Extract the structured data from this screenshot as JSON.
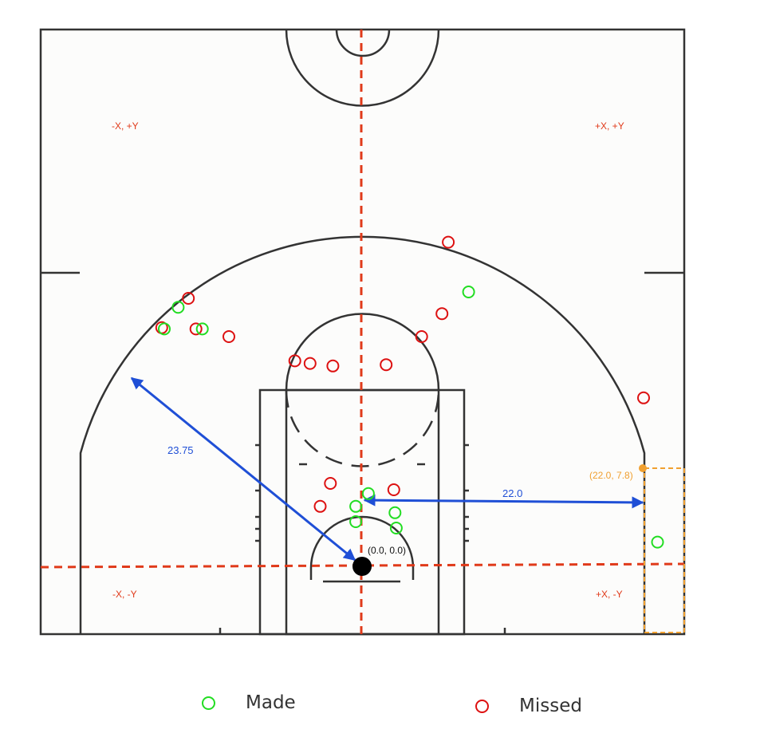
{
  "quadrants": {
    "top_left": "-X, +Y",
    "top_right": "+X, +Y",
    "bottom_left": "-X, -Y",
    "bottom_right": "+X, -Y"
  },
  "annotations": {
    "origin": "(0.0, 0.0)",
    "corner": "(22.0, 7.8)",
    "arc_radius": "23.75",
    "corner_distance": "22.0"
  },
  "legend": {
    "made": "Made",
    "missed": "Missed"
  },
  "colors": {
    "made": "#22dd22",
    "missed": "#dd1111",
    "axis": "#e03a1a",
    "measure": "#1f4fd6",
    "corner": "#f0a030",
    "court_line": "#333333",
    "court_bg": "#fcfcfb"
  },
  "shots": {
    "made": [
      [
        -14.5,
        20.3
      ],
      [
        -15.6,
        18.6
      ],
      [
        -12.6,
        18.6
      ],
      [
        0.5,
        5.7
      ],
      [
        -0.5,
        4.7
      ],
      [
        -0.5,
        3.5
      ],
      [
        2.6,
        4.2
      ],
      [
        2.7,
        3.0
      ],
      [
        8.4,
        21.5
      ],
      [
        23.3,
        1.9
      ]
    ],
    "missed": [
      [
        -13.7,
        21.0
      ],
      [
        -15.8,
        18.7
      ],
      [
        -13.1,
        18.6
      ],
      [
        -10.5,
        18.0
      ],
      [
        -5.3,
        16.1
      ],
      [
        -4.1,
        15.9
      ],
      [
        -2.3,
        15.7
      ],
      [
        1.9,
        15.8
      ],
      [
        4.7,
        18.0
      ],
      [
        6.3,
        19.8
      ],
      [
        6.8,
        25.4
      ],
      [
        22.2,
        13.2
      ],
      [
        -2.5,
        6.5
      ],
      [
        2.5,
        6.0
      ],
      [
        -3.3,
        4.7
      ]
    ]
  }
}
